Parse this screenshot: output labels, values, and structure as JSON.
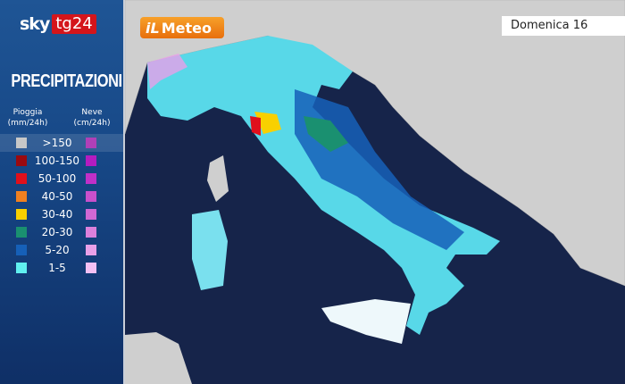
{
  "brand": {
    "sky": "sky",
    "tg24": "tg24"
  },
  "title": "PRECIPITAZIONI",
  "legend": {
    "rain_header": "Pioggia",
    "rain_unit": "(mm/24h)",
    "snow_header": "Neve",
    "snow_unit": "(cm/24h)",
    "rows": [
      {
        "label": ">150",
        "rain_color": "#c8c8c8",
        "snow_color": "#b040b8"
      },
      {
        "label": "100-150",
        "rain_color": "#9a0a10",
        "snow_color": "#b41cc0"
      },
      {
        "label": "50-100",
        "rain_color": "#e0101c",
        "snow_color": "#c030c8"
      },
      {
        "label": "40-50",
        "rain_color": "#f08020",
        "snow_color": "#c850cc"
      },
      {
        "label": "30-40",
        "rain_color": "#f8d000",
        "snow_color": "#d068d4"
      },
      {
        "label": "20-30",
        "rain_color": "#1a9070",
        "snow_color": "#dc80dc"
      },
      {
        "label": "5-20",
        "rain_color": "#1660b8",
        "snow_color": "#e8a0e8"
      },
      {
        "label": "1-5",
        "rain_color": "#60f0f0",
        "snow_color": "#f4c0f4"
      }
    ]
  },
  "provider": {
    "il": "iL",
    "name": "Meteo"
  },
  "date": "Domenica 16",
  "colors": {
    "sea": "#16244a",
    "land": "#cfcfcf"
  }
}
